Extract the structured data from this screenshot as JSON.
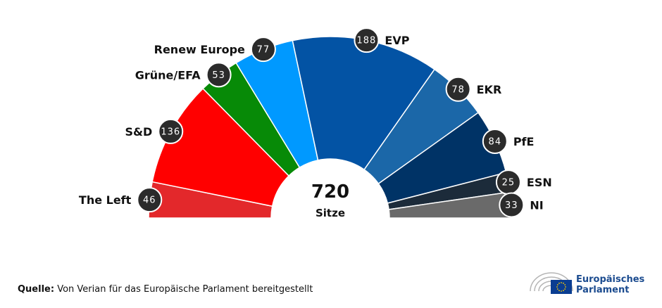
{
  "chart_data": {
    "type": "pie",
    "variant": "parliament-hemicycle",
    "total": "720",
    "total_label": "Sitze",
    "series": [
      {
        "name": "The Left",
        "value": 46,
        "color": "#e3282b"
      },
      {
        "name": "S&D",
        "value": 136,
        "color": "#ff0000"
      },
      {
        "name": "Grüne/EFA",
        "value": 53,
        "color": "#078a07"
      },
      {
        "name": "Renew Europe",
        "value": 77,
        "color": "#0099ff"
      },
      {
        "name": "EVP",
        "value": 188,
        "color": "#0353a4"
      },
      {
        "name": "EKR",
        "value": 78,
        "color": "#1b67a8"
      },
      {
        "name": "PfE",
        "value": 84,
        "color": "#003366"
      },
      {
        "name": "ESN",
        "value": 25,
        "color": "#1c2b3a"
      },
      {
        "name": "NI",
        "value": 33,
        "color": "#6a6a6a"
      }
    ]
  },
  "footer": {
    "source_label": "Quelle:",
    "source_text": " Von Verian für das Europäische Parlament bereitgestellt"
  },
  "logo": {
    "line1": "Europäisches",
    "line2": "Parlament",
    "flag_color": "#0a3d91"
  }
}
